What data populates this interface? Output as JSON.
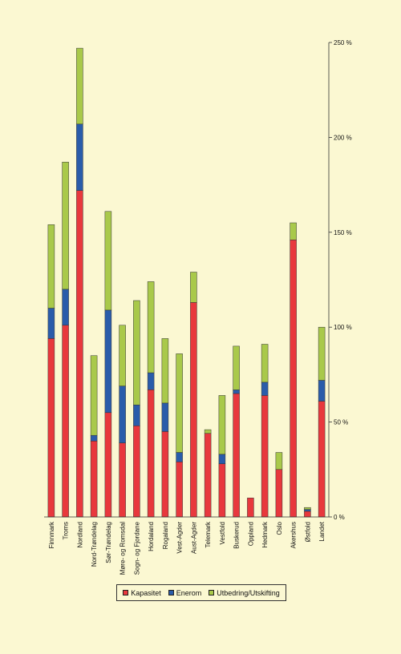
{
  "chart_data": {
    "type": "bar",
    "stacked": true,
    "categories": [
      "Finnmark",
      "Troms",
      "Nordland",
      "Nord-Trøndelag",
      "Sør-Trøndelag",
      "Møre- og Romsdal",
      "Sogn- og Fjordane",
      "Hordaland",
      "Rogaland",
      "Vest-Agder",
      "Aust-Agder",
      "Telemark",
      "Vestfold",
      "Buskerud",
      "Oppland",
      "Hedmark",
      "Oslo",
      "Akershus",
      "Østfold",
      "Landet"
    ],
    "series": [
      {
        "name": "Kapasitet",
        "color": "#e8383d",
        "values": [
          94,
          101,
          172,
          40,
          55,
          39,
          48,
          67,
          45,
          29,
          113,
          44,
          28,
          65,
          10,
          64,
          25,
          146,
          3,
          61
        ]
      },
      {
        "name": "Enerom",
        "color": "#2a5caa",
        "values": [
          16,
          19,
          35,
          3,
          54,
          30,
          11,
          9,
          15,
          5,
          0,
          0,
          5,
          2,
          0,
          7,
          0,
          0,
          1,
          11
        ]
      },
      {
        "name": "Utbedring/Utskifting",
        "color": "#a9c94a",
        "values": [
          44,
          67,
          40,
          42,
          52,
          32,
          55,
          48,
          34,
          52,
          16,
          2,
          31,
          23,
          0,
          20,
          9,
          9,
          1,
          28
        ]
      }
    ],
    "y_ticks": [
      0,
      50,
      100,
      150,
      200,
      250
    ],
    "y_tick_labels": [
      "0 %",
      "50 %",
      "100 %",
      "150 %",
      "200 %",
      "250 %"
    ],
    "ylim": [
      0,
      250
    ],
    "y_axis_position": "right",
    "grid": false,
    "legend_position": "bottom"
  }
}
